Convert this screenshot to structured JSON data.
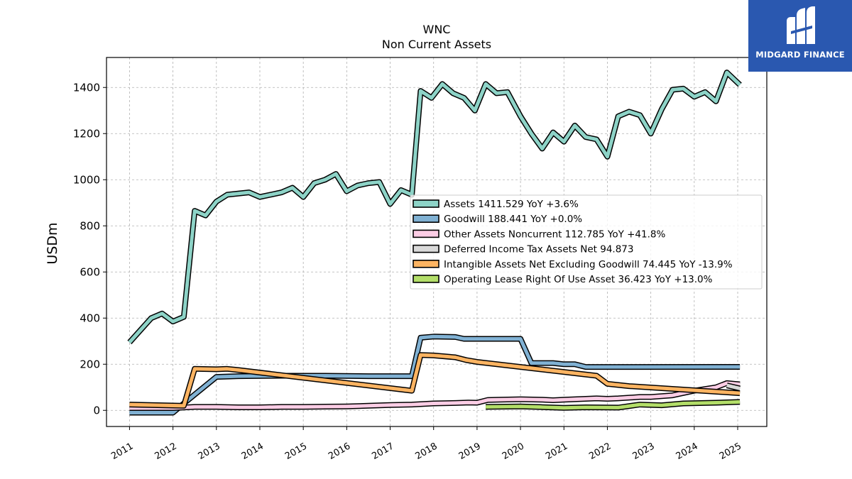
{
  "brand": {
    "name": "MIDGARD FINANCE",
    "color": "#2a58b0",
    "icon": "midgard-logo-icon"
  },
  "chart_data": {
    "type": "line",
    "title": "WNC",
    "subtitle": "Non Current  Assets",
    "xlabel": "",
    "ylabel": "USDm",
    "xlim": [
      2010.47,
      2025.67
    ],
    "ylim": [
      -70,
      1530
    ],
    "x_ticks": [
      "2011",
      "2012",
      "2013",
      "2014",
      "2015",
      "2016",
      "2017",
      "2018",
      "2019",
      "2020",
      "2021",
      "2022",
      "2023",
      "2024",
      "2025"
    ],
    "y_ticks": [
      0,
      200,
      400,
      600,
      800,
      1000,
      1200,
      1400
    ],
    "grid": true,
    "legend_position": "center-right",
    "series": [
      {
        "name": "Assets",
        "legend_label": "Assets  1411.529 YoY +3.6%",
        "color": "#8dd3c7",
        "points": [
          [
            2011.0,
            295
          ],
          [
            2011.5,
            400
          ],
          [
            2011.75,
            420
          ],
          [
            2012.0,
            385
          ],
          [
            2012.25,
            405
          ],
          [
            2012.5,
            865
          ],
          [
            2012.75,
            845
          ],
          [
            2013.0,
            905
          ],
          [
            2013.25,
            935
          ],
          [
            2013.75,
            945
          ],
          [
            2014.0,
            925
          ],
          [
            2014.5,
            945
          ],
          [
            2014.75,
            965
          ],
          [
            2015.0,
            925
          ],
          [
            2015.25,
            985
          ],
          [
            2015.5,
            1000
          ],
          [
            2015.75,
            1025
          ],
          [
            2016.0,
            950
          ],
          [
            2016.25,
            975
          ],
          [
            2016.5,
            985
          ],
          [
            2016.75,
            990
          ],
          [
            2017.0,
            895
          ],
          [
            2017.25,
            955
          ],
          [
            2017.5,
            935
          ],
          [
            2017.7,
            1385
          ],
          [
            2017.95,
            1355
          ],
          [
            2018.2,
            1415
          ],
          [
            2018.45,
            1375
          ],
          [
            2018.7,
            1355
          ],
          [
            2018.95,
            1300
          ],
          [
            2019.2,
            1415
          ],
          [
            2019.45,
            1375
          ],
          [
            2019.7,
            1380
          ],
          [
            2020.0,
            1275
          ],
          [
            2020.25,
            1200
          ],
          [
            2020.5,
            1135
          ],
          [
            2020.75,
            1205
          ],
          [
            2021.0,
            1165
          ],
          [
            2021.25,
            1235
          ],
          [
            2021.5,
            1185
          ],
          [
            2021.75,
            1175
          ],
          [
            2022.0,
            1100
          ],
          [
            2022.25,
            1275
          ],
          [
            2022.5,
            1295
          ],
          [
            2022.75,
            1280
          ],
          [
            2023.0,
            1200
          ],
          [
            2023.25,
            1305
          ],
          [
            2023.5,
            1390
          ],
          [
            2023.75,
            1395
          ],
          [
            2024.0,
            1360
          ],
          [
            2024.25,
            1380
          ],
          [
            2024.5,
            1340
          ],
          [
            2024.75,
            1465
          ],
          [
            2025.05,
            1411.529
          ]
        ]
      },
      {
        "name": "Goodwill",
        "legend_label": "Goodwill  188.441 YoY +0.0%",
        "color": "#80b1d3",
        "points": [
          [
            2011.0,
            -10
          ],
          [
            2012.0,
            -10
          ],
          [
            2012.25,
            30
          ],
          [
            2013.0,
            145
          ],
          [
            2013.5,
            148
          ],
          [
            2014.5,
            150
          ],
          [
            2015.5,
            150
          ],
          [
            2016.5,
            148
          ],
          [
            2017.5,
            148
          ],
          [
            2017.7,
            315
          ],
          [
            2018.0,
            320
          ],
          [
            2018.5,
            318
          ],
          [
            2018.7,
            310
          ],
          [
            2020.0,
            310
          ],
          [
            2020.25,
            205
          ],
          [
            2020.75,
            205
          ],
          [
            2021.0,
            200
          ],
          [
            2021.25,
            200
          ],
          [
            2021.5,
            188
          ],
          [
            2025.05,
            188.441
          ]
        ]
      },
      {
        "name": "Other Assets Noncurrent",
        "legend_label": "Other Assets Noncurrent  112.785 YoY +41.8%",
        "color": "#fccde5",
        "points": [
          [
            2011.0,
            10
          ],
          [
            2012.0,
            10
          ],
          [
            2012.5,
            15
          ],
          [
            2013.0,
            15
          ],
          [
            2013.5,
            13
          ],
          [
            2014.0,
            13
          ],
          [
            2014.5,
            15
          ],
          [
            2015.0,
            15
          ],
          [
            2015.5,
            16
          ],
          [
            2016.0,
            17
          ],
          [
            2016.5,
            20
          ],
          [
            2017.0,
            23
          ],
          [
            2017.5,
            25
          ],
          [
            2018.0,
            30
          ],
          [
            2018.5,
            32
          ],
          [
            2018.8,
            34
          ],
          [
            2019.0,
            33
          ],
          [
            2019.25,
            45
          ],
          [
            2019.5,
            46
          ],
          [
            2020.0,
            48
          ],
          [
            2020.5,
            46
          ],
          [
            2020.75,
            44
          ],
          [
            2021.0,
            46
          ],
          [
            2021.25,
            48
          ],
          [
            2021.5,
            50
          ],
          [
            2021.75,
            52
          ],
          [
            2022.0,
            50
          ],
          [
            2022.25,
            52
          ],
          [
            2022.5,
            55
          ],
          [
            2022.75,
            58
          ],
          [
            2023.0,
            58
          ],
          [
            2023.5,
            65
          ],
          [
            2024.0,
            85
          ],
          [
            2024.5,
            100
          ],
          [
            2024.75,
            118
          ],
          [
            2025.05,
            112.785
          ]
        ]
      },
      {
        "name": "Deferred Income Tax Assets Net",
        "legend_label": "Deferred Income Tax Assets Net  94.873",
        "color": "#d9d9d9",
        "points": [
          [
            2024.75,
            108
          ],
          [
            2025.05,
            94.873
          ]
        ]
      },
      {
        "name": "Intangible Assets Net Excluding Goodwill",
        "legend_label": "Intangible Assets Net Excluding Goodwill  74.445 YoY -13.9%",
        "color": "#fdb462",
        "points": [
          [
            2011.0,
            25
          ],
          [
            2012.25,
            20
          ],
          [
            2012.5,
            180
          ],
          [
            2013.0,
            178
          ],
          [
            2013.25,
            180
          ],
          [
            2013.5,
            175
          ],
          [
            2017.5,
            85
          ],
          [
            2017.7,
            240
          ],
          [
            2018.0,
            238
          ],
          [
            2018.5,
            230
          ],
          [
            2018.75,
            218
          ],
          [
            2019.0,
            210
          ],
          [
            2021.75,
            150
          ],
          [
            2022.0,
            115
          ],
          [
            2022.5,
            105
          ],
          [
            2025.05,
            74.445
          ]
        ]
      },
      {
        "name": "Operating Lease Right Of Use Asset",
        "legend_label": "Operating Lease Right Of Use Asset  36.423 YoY +13.0%",
        "color": "#b3de69",
        "points": [
          [
            2019.2,
            15
          ],
          [
            2020.0,
            17
          ],
          [
            2020.5,
            14
          ],
          [
            2021.0,
            11
          ],
          [
            2021.5,
            13
          ],
          [
            2022.25,
            12
          ],
          [
            2022.75,
            25
          ],
          [
            2023.25,
            22
          ],
          [
            2023.75,
            30
          ],
          [
            2024.5,
            33
          ],
          [
            2025.05,
            36.423
          ]
        ]
      }
    ]
  }
}
